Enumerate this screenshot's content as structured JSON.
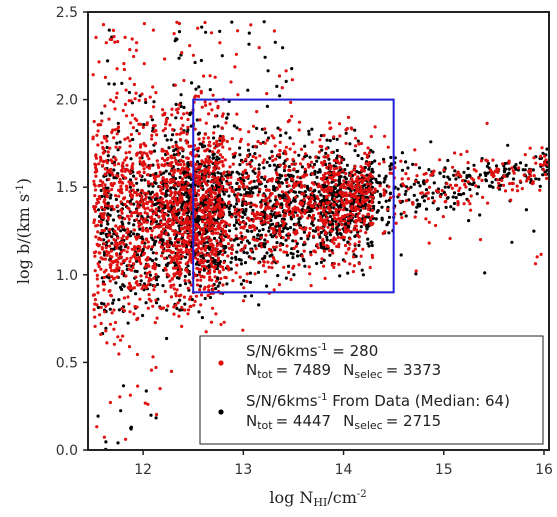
{
  "chart_data": {
    "type": "scatter",
    "xlabel": {
      "main": "log N",
      "sub": "HI",
      "unit": "/cm",
      "sup": "-2"
    },
    "ylabel": {
      "main": "log b/(km s",
      "sup": "-1",
      "close": ")"
    },
    "xlim": [
      11.45,
      16.05
    ],
    "ylim": [
      0.0,
      2.5
    ],
    "x_ticks": [
      12,
      13,
      14,
      15,
      16
    ],
    "y_ticks": [
      0.0,
      0.5,
      1.0,
      1.5,
      2.0,
      2.5
    ],
    "x_tick_labels": [
      "12",
      "13",
      "14",
      "15",
      "16"
    ],
    "y_tick_labels": [
      "0.0",
      "0.5",
      "1.0",
      "1.5",
      "2.0",
      "2.5"
    ],
    "grid": false,
    "legend_position": "lower-right",
    "selection_box": {
      "x": [
        12.5,
        14.5
      ],
      "y": [
        0.9,
        2.0
      ],
      "color": "#1f1fd6"
    },
    "series": [
      {
        "color": "#e01010",
        "legend": {
          "line1_prefix": "S/N/6kms",
          "line1_sup": "-1",
          "line1_suffix": " = 280",
          "tot_label": "N",
          "tot_sub": "tot",
          "tot_value": "= 7489",
          "selec_label": "N",
          "selec_sub": "selec",
          "selec_value": "= 3373"
        },
        "n_tot": 7489,
        "n_selec": 3373
      },
      {
        "color": "#000000",
        "legend": {
          "line1_prefix": "S/N/6kms",
          "line1_sup": "-1",
          "line1_suffix": "  From Data (Median: 64)",
          "tot_label": "N",
          "tot_sub": "tot",
          "tot_value": "= 4447",
          "selec_label": "N",
          "selec_sub": "selec",
          "selec_value": "= 2715"
        },
        "n_tot": 4447,
        "n_selec": 2715
      }
    ]
  }
}
